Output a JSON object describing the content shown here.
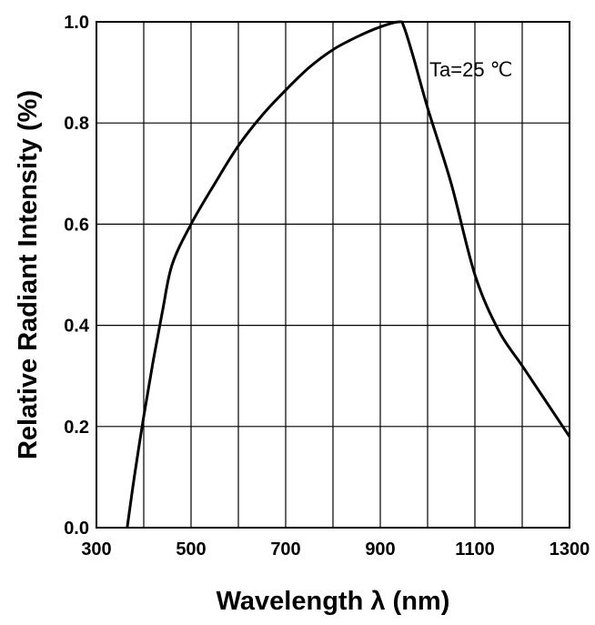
{
  "chart_data": {
    "type": "line",
    "xlabel": "Wavelength λ (nm)",
    "ylabel": "Relative Radiant Intensity (%)",
    "xlim": [
      300,
      1300
    ],
    "ylim": [
      0.0,
      1.0
    ],
    "x_ticks": [
      300,
      500,
      700,
      900,
      1100,
      1300
    ],
    "y_ticks": [
      0.0,
      0.2,
      0.4,
      0.6,
      0.8,
      1.0
    ],
    "x_tick_labels": [
      "300",
      "500",
      "700",
      "900",
      "1100",
      "1300"
    ],
    "y_tick_labels": [
      "0.0",
      "0.2",
      "0.4",
      "0.6",
      "0.8",
      "1.0"
    ],
    "x_grid_step": 100,
    "y_grid_step": 0.2,
    "grid": true,
    "annotation": "Ta=25 ℃",
    "series": [
      {
        "x": [
          365,
          380,
          400,
          420,
          440,
          460,
          500,
          550,
          600,
          650,
          700,
          750,
          800,
          850,
          900,
          940,
          950,
          970,
          1000,
          1050,
          1100,
          1150,
          1200,
          1250,
          1300
        ],
        "values": [
          0.0,
          0.1,
          0.22,
          0.33,
          0.43,
          0.52,
          0.6,
          0.68,
          0.755,
          0.815,
          0.865,
          0.91,
          0.945,
          0.97,
          0.99,
          1.0,
          0.99,
          0.93,
          0.83,
          0.68,
          0.5,
          0.39,
          0.32,
          0.25,
          0.18
        ]
      }
    ]
  }
}
